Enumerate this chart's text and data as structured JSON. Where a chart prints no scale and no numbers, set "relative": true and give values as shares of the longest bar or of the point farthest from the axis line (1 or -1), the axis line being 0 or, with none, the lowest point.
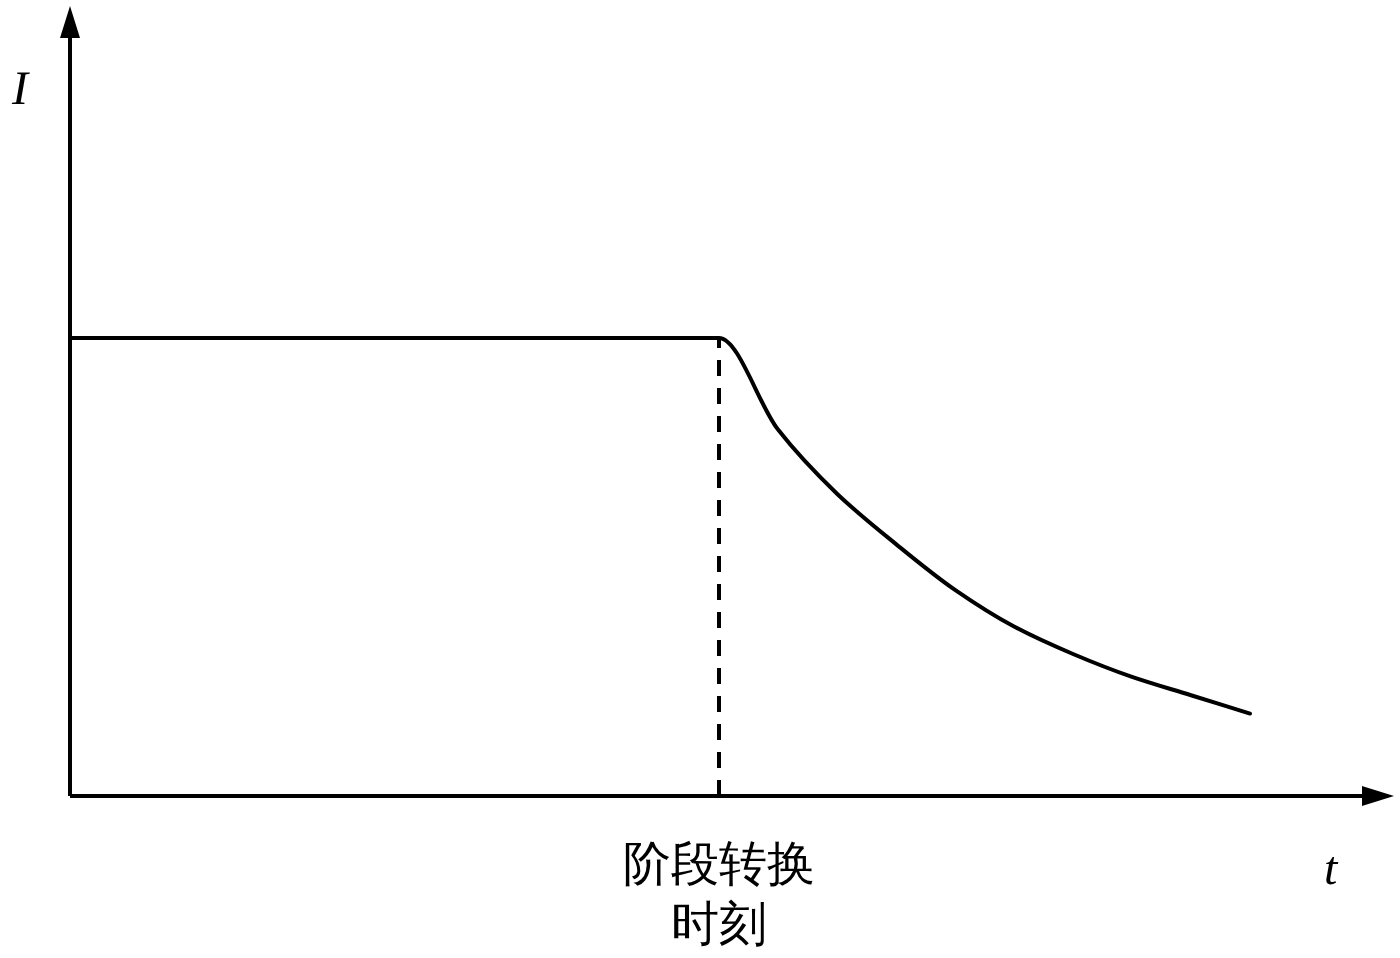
{
  "chart_data": {
    "type": "line",
    "relative": true,
    "xlabel": "t",
    "ylabel": "I",
    "categories": [
      null,
      null,
      null,
      null,
      null,
      null,
      null,
      null,
      null,
      null,
      null,
      null,
      null,
      null,
      null,
      null,
      null,
      null,
      null,
      null,
      null
    ],
    "series": [
      {
        "color": "#000000",
        "values": [
          1,
          1,
          1,
          1,
          1,
          1,
          1,
          1,
          1,
          1,
          1,
          1,
          0.8,
          0.66,
          0.55,
          0.45,
          0.37,
          0.31,
          0.26,
          0.22,
          0.18
        ]
      }
    ],
    "annotations": [
      "阶段转换时刻"
    ]
  }
}
